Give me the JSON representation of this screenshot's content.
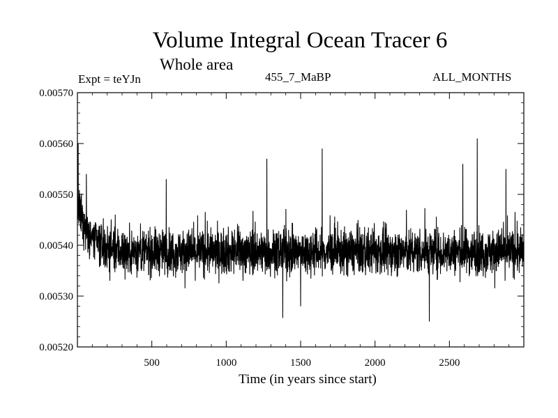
{
  "chart_data": {
    "type": "line",
    "title": "Volume Integral Ocean Tracer 6",
    "subtitle": "Whole area",
    "expt_label": "Expt = teYJn",
    "center_label": "455_7_MaBP",
    "right_label": "ALL_MONTHS",
    "xlabel": "Time (in years since start)",
    "ylabel": "",
    "xlim": [
      0,
      3000
    ],
    "ylim": [
      0.0052,
      0.0057
    ],
    "xticks": [
      500,
      1000,
      1500,
      2000,
      2500
    ],
    "xtick_labels": [
      "500",
      "1000",
      "1500",
      "2000",
      "2500"
    ],
    "yticks": [
      0.0052,
      0.0053,
      0.0054,
      0.0055,
      0.0056,
      0.0057
    ],
    "ytick_labels": [
      "0.00520",
      "0.00530",
      "0.00540",
      "0.00550",
      "0.00560",
      "0.00570"
    ],
    "series": [
      {
        "name": "Ocean Tracer 6",
        "description": "noisy annual series",
        "baseline_mean": 0.005387,
        "initial_value": 0.00548,
        "initial_relaxation_years": 80,
        "noise_amplitude": 4e-05,
        "spikes": [
          {
            "x": 5,
            "y": 0.0056
          },
          {
            "x": 60,
            "y": 0.00554
          },
          {
            "x": 597,
            "y": 0.00553
          },
          {
            "x": 1273,
            "y": 0.00557
          },
          {
            "x": 1380,
            "y": 0.005257
          },
          {
            "x": 1645,
            "y": 0.00559
          },
          {
            "x": 1500,
            "y": 0.00528
          },
          {
            "x": 2365,
            "y": 0.00525
          },
          {
            "x": 2590,
            "y": 0.00556
          },
          {
            "x": 2687,
            "y": 0.00561
          },
          {
            "x": 2880,
            "y": 0.00555
          }
        ]
      }
    ],
    "colors": {
      "line": "#000000",
      "axis": "#000000",
      "background": "#ffffff"
    }
  }
}
